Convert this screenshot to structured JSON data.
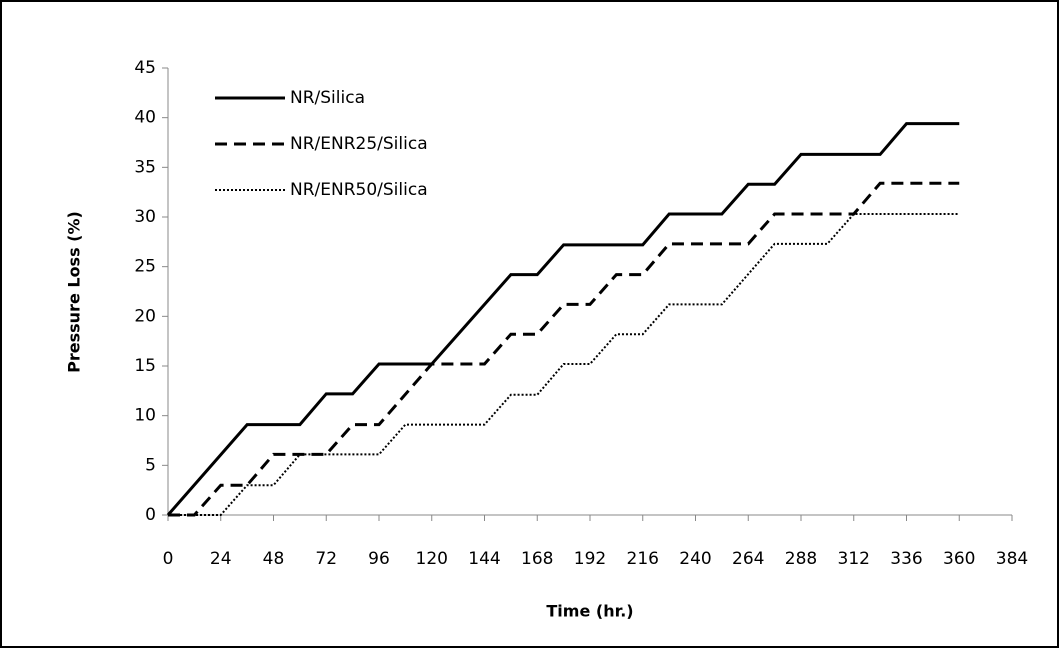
{
  "chart_data": {
    "type": "line",
    "xlabel": "Time (hr.)",
    "ylabel": "Pressure Loss  (%)",
    "xlim": [
      0,
      384
    ],
    "xticks": [
      0,
      24,
      48,
      72,
      96,
      120,
      144,
      168,
      192,
      216,
      240,
      264,
      288,
      312,
      336,
      360,
      384
    ],
    "ylim": [
      0,
      45
    ],
    "yticks": [
      0,
      5,
      10,
      15,
      20,
      25,
      30,
      35,
      40,
      45
    ],
    "grid": false,
    "legend": "upper-left",
    "series": [
      {
        "name": "NR/Silica",
        "color": "#000000",
        "dash": "solid",
        "x": [
          0,
          36,
          60,
          72,
          84,
          96,
          120,
          156,
          168,
          180,
          216,
          228,
          252,
          264,
          276,
          288,
          324,
          336,
          360
        ],
        "values": [
          0,
          9.1,
          9.1,
          12.2,
          12.2,
          15.2,
          15.2,
          24.2,
          24.2,
          27.2,
          27.2,
          30.3,
          30.3,
          33.3,
          33.3,
          36.3,
          36.3,
          39.4,
          39.4
        ]
      },
      {
        "name": "NR/ENR25/Silica",
        "color": "#000000",
        "dash": "dashed",
        "x": [
          0,
          12,
          24,
          36,
          48,
          72,
          84,
          96,
          120,
          144,
          156,
          168,
          180,
          192,
          204,
          216,
          228,
          264,
          276,
          312,
          324,
          360
        ],
        "values": [
          0,
          0,
          3,
          3,
          6.1,
          6.1,
          9.1,
          9.1,
          15.2,
          15.2,
          18.2,
          18.2,
          21.2,
          21.2,
          24.2,
          24.2,
          27.3,
          27.3,
          30.3,
          30.3,
          33.4,
          33.4
        ]
      },
      {
        "name": "NR/ENR50/Silica",
        "color": "#000000",
        "dash": "dotted",
        "x": [
          0,
          24,
          36,
          48,
          60,
          96,
          108,
          144,
          156,
          168,
          180,
          192,
          204,
          216,
          228,
          252,
          276,
          300,
          312,
          360
        ],
        "values": [
          0,
          0,
          3,
          3,
          6.1,
          6.1,
          9.1,
          9.1,
          12.1,
          12.1,
          15.2,
          15.2,
          18.2,
          18.2,
          21.2,
          21.2,
          27.3,
          27.3,
          30.3,
          30.3
        ]
      }
    ]
  }
}
